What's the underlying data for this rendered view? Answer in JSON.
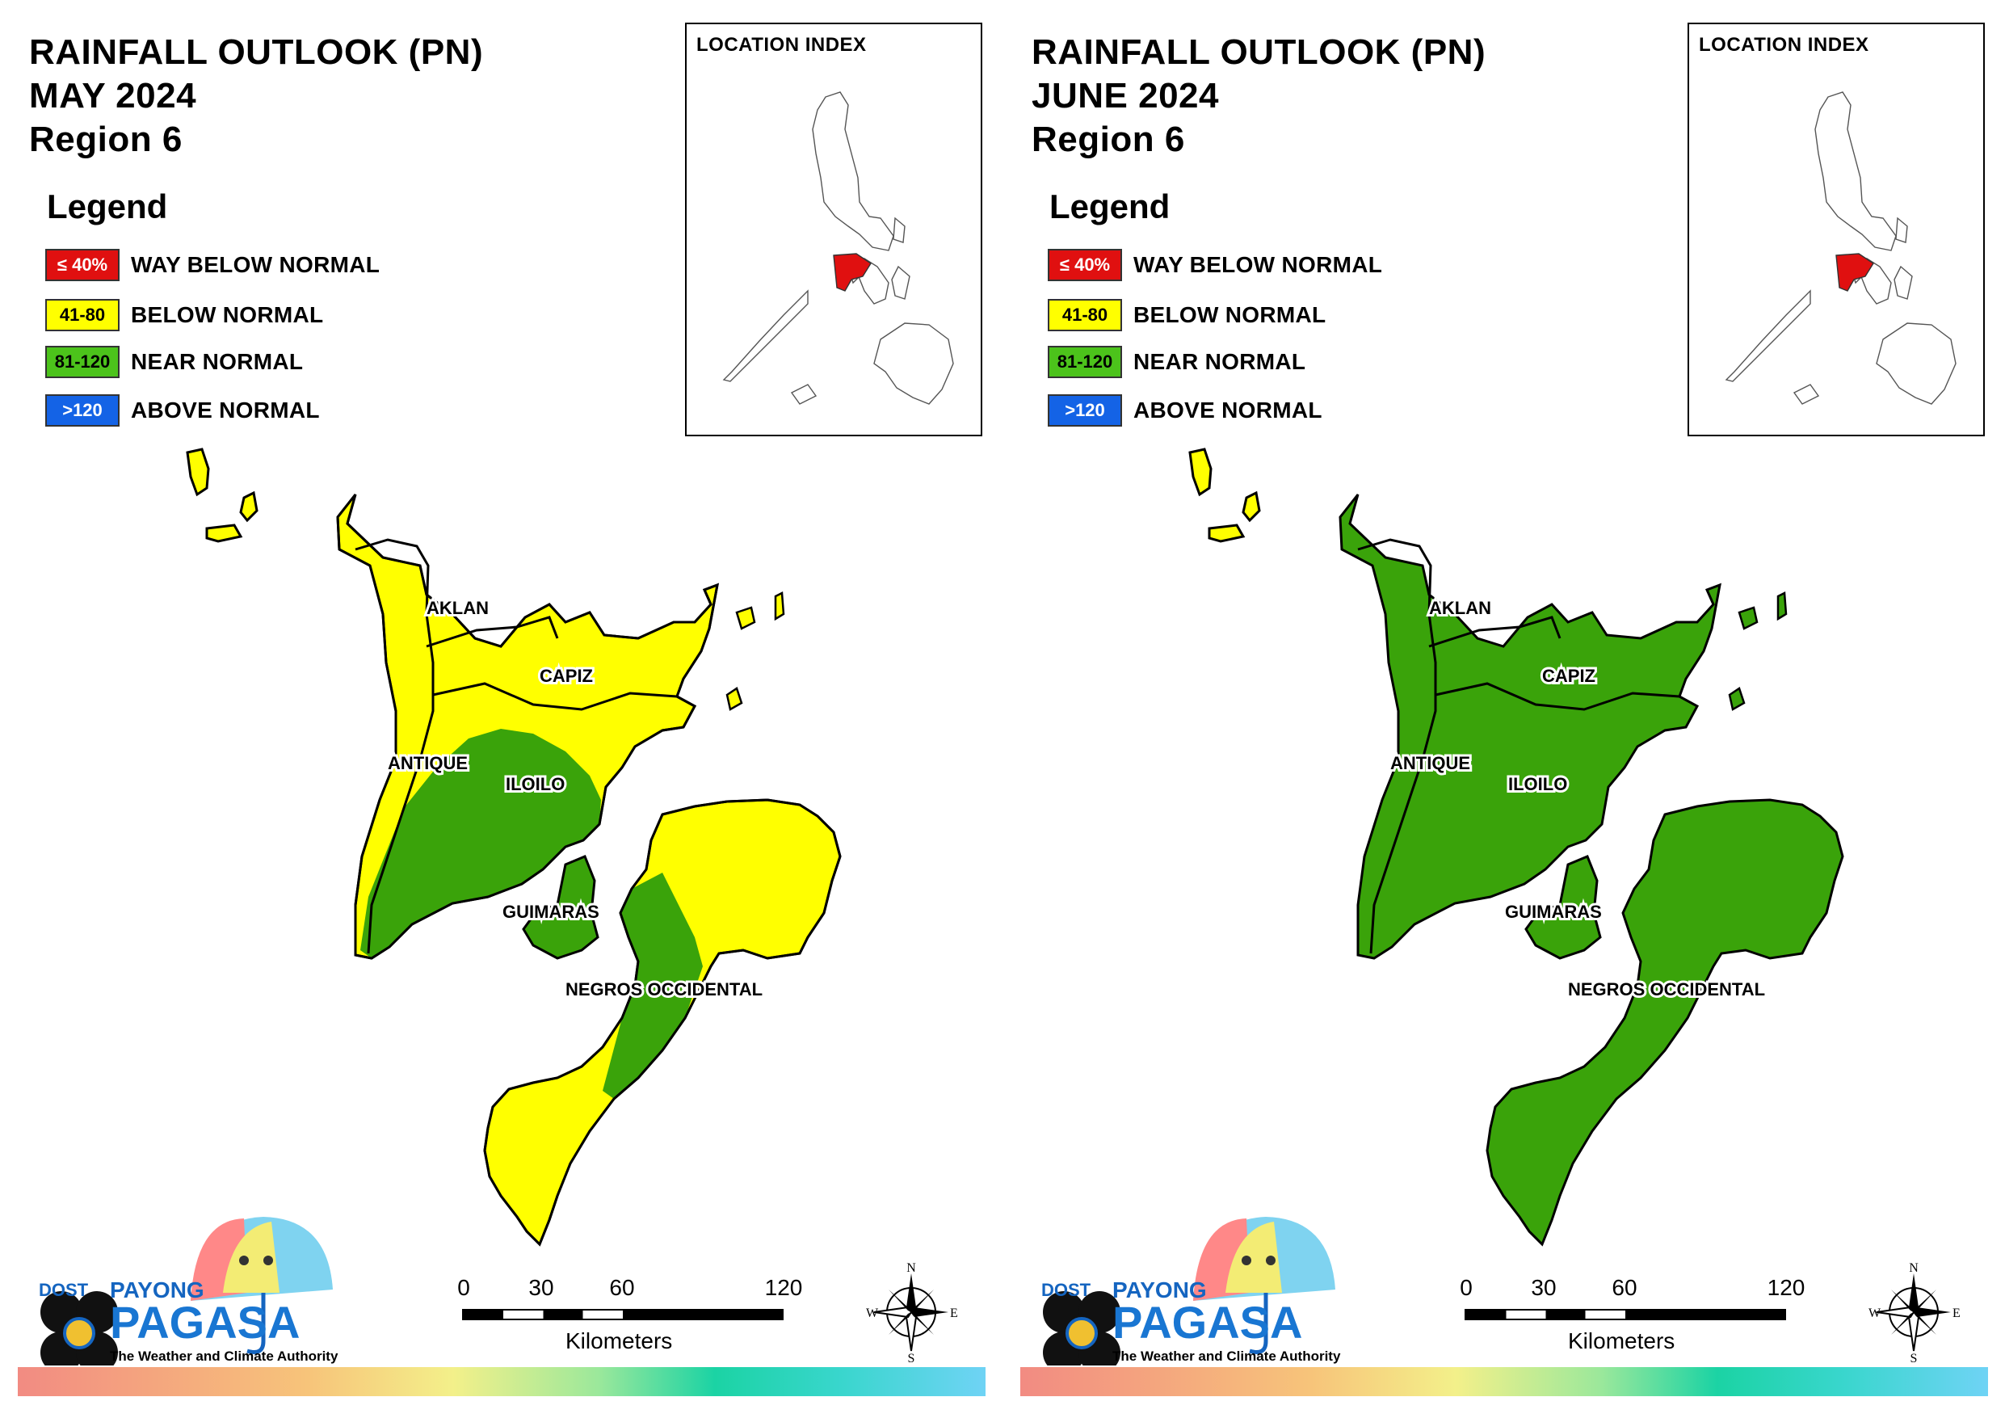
{
  "panels": [
    {
      "title_line1": "RAINFALL OUTLOOK (PN)",
      "title_line2": "MAY 2024",
      "title_line3": "Region 6",
      "provinces": {
        "aklan": "AKLAN",
        "capiz": "CAPIZ",
        "antique": "ANTIQUE",
        "iloilo": "ILOILO",
        "guimaras": "GUIMARAS",
        "negros": "NEGROS OCCIDENTAL"
      }
    },
    {
      "title_line1": "RAINFALL OUTLOOK (PN)",
      "title_line2": "JUNE 2024",
      "title_line3": "Region 6",
      "provinces": {
        "aklan": "AKLAN",
        "capiz": "CAPIZ",
        "antique": "ANTIQUE",
        "iloilo": "ILOILO",
        "guimaras": "GUIMARAS",
        "negros": "NEGROS OCCIDENTAL"
      }
    }
  ],
  "legend": {
    "title": "Legend",
    "items": [
      {
        "range": "≤ 40%",
        "label": "WAY BELOW NORMAL",
        "color": "#e01010"
      },
      {
        "range": "41-80",
        "label": "BELOW NORMAL",
        "color": "#ffff00"
      },
      {
        "range": "81-120",
        "label": "NEAR NORMAL",
        "color": "#4cc31b"
      },
      {
        "range": ">120",
        "label": "ABOVE NORMAL",
        "color": "#1463e6"
      }
    ]
  },
  "location_index": {
    "title": "LOCATION INDEX",
    "highlight_color": "#e01010"
  },
  "scale_bar": {
    "ticks": [
      "0",
      "30",
      "60",
      "120"
    ],
    "unit": "Kilometers"
  },
  "compass": {
    "n": "N",
    "s": "S",
    "e": "E",
    "w": "W"
  },
  "logo": {
    "dost": "DOST",
    "payong": "PAYONG",
    "pagasa": "PAGASA",
    "tagline": "The Weather and Climate Authority"
  },
  "map_colors": {
    "yellow": "#ffff00",
    "green": "#3aa30a",
    "border": "#000000"
  },
  "outlook_by_province": {
    "MAY 2024": {
      "AKLAN": "BELOW NORMAL",
      "CAPIZ": "BELOW NORMAL",
      "ANTIQUE": "BELOW NORMAL / NEAR NORMAL",
      "ILOILO": "NEAR NORMAL / BELOW NORMAL",
      "GUIMARAS": "NEAR NORMAL",
      "NEGROS OCCIDENTAL": "BELOW NORMAL / NEAR NORMAL"
    },
    "JUNE 2024": {
      "AKLAN": "NEAR NORMAL",
      "CAPIZ": "NEAR NORMAL",
      "ANTIQUE": "NEAR NORMAL",
      "ILOILO": "NEAR NORMAL",
      "GUIMARAS": "NEAR NORMAL",
      "NEGROS OCCIDENTAL": "NEAR NORMAL"
    }
  }
}
